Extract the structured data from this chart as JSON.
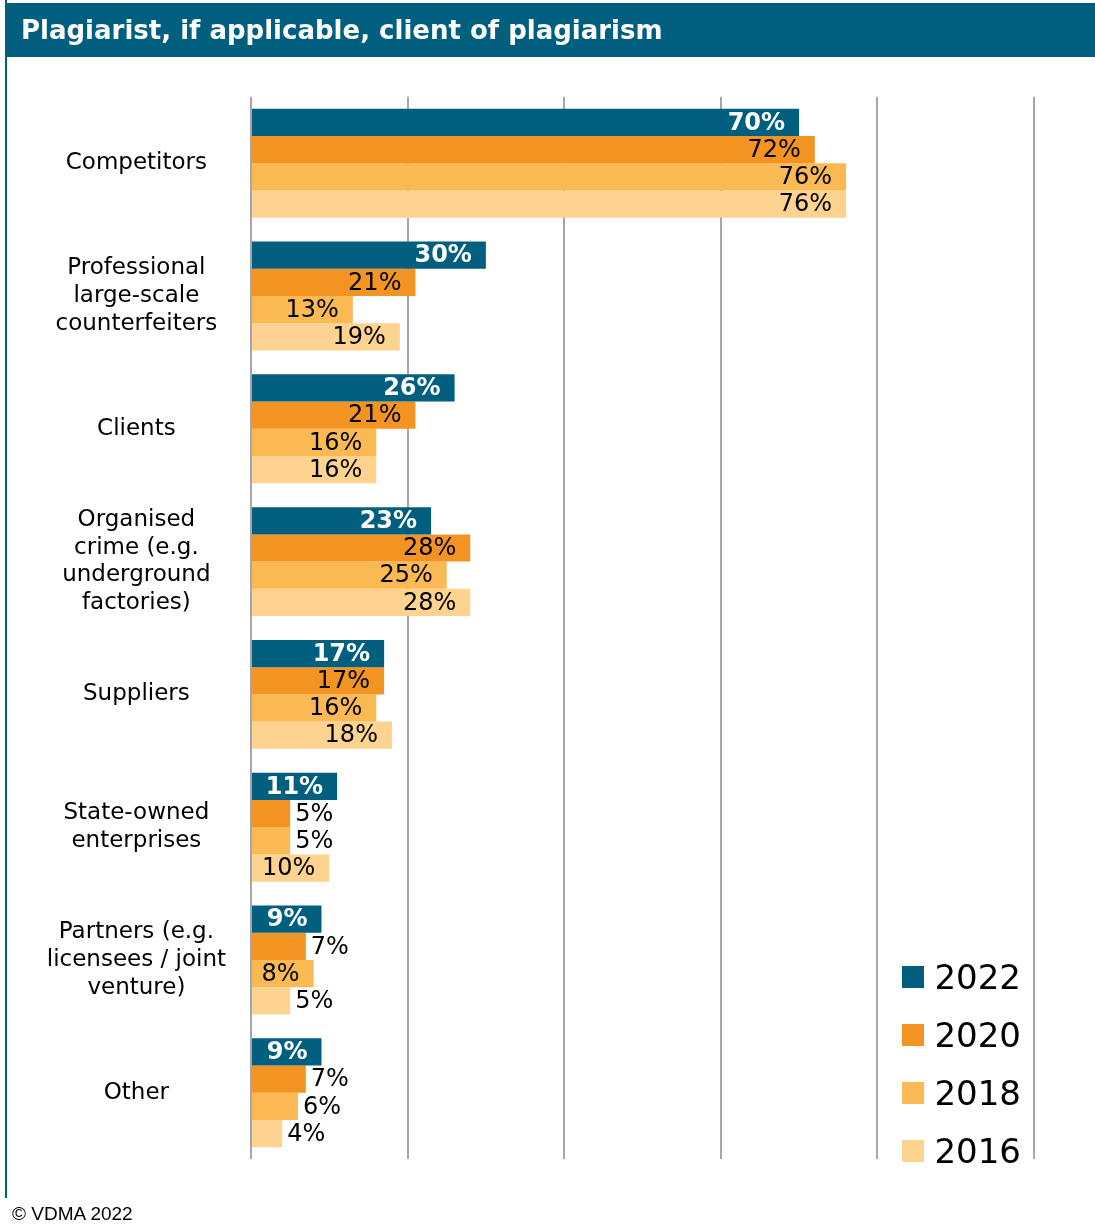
{
  "chart_data": {
    "type": "bar",
    "orientation": "horizontal",
    "title": "Plagiarist, if applicable, client of plagiarism",
    "categories": [
      "Competitors",
      "Professional large-scale counterfeiters",
      "Clients",
      "Organised crime (e.g. underground factories)",
      "Suppliers",
      "State-owned enterprises",
      "Partners (e.g. licensees / joint venture)",
      "Other"
    ],
    "series": [
      {
        "name": "2022",
        "color": "#005f7f",
        "values": [
          70,
          30,
          26,
          23,
          17,
          11,
          9,
          9
        ],
        "value_labels": [
          "70%",
          "30%",
          "26%",
          "23%",
          "17%",
          "11%",
          "9%",
          "9%"
        ]
      },
      {
        "name": "2020",
        "color": "#f39322",
        "values": [
          72,
          21,
          21,
          28,
          17,
          5,
          7,
          7
        ],
        "value_labels": [
          "72%",
          "21%",
          "21%",
          "28%",
          "17%",
          "5%",
          "7%",
          "7%"
        ]
      },
      {
        "name": "2018",
        "color": "#fbb954",
        "values": [
          76,
          13,
          16,
          25,
          16,
          5,
          8,
          6
        ],
        "value_labels": [
          "76%",
          "13%",
          "16%",
          "25%",
          "16%",
          "5%",
          "8%",
          "6%"
        ]
      },
      {
        "name": "2016",
        "color": "#fdd38f",
        "values": [
          76,
          19,
          16,
          28,
          18,
          10,
          5,
          4
        ],
        "value_labels": [
          "76%",
          "19%",
          "16%",
          "28%",
          "18%",
          "10%",
          "5%",
          "4%"
        ]
      }
    ],
    "tick_labels": "y",
    "grid": "x",
    "legend": "bottom right",
    "annotations": [
      "© VDMA 2022"
    ]
  }
}
